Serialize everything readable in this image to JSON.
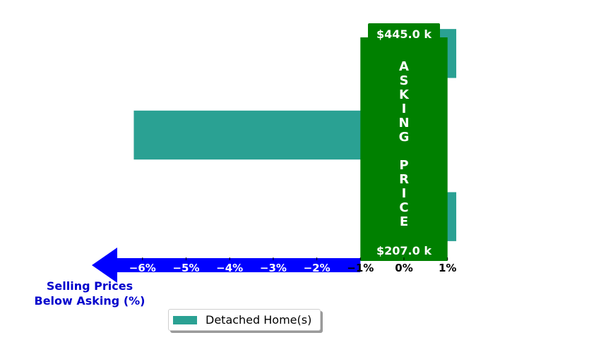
{
  "chart_data": {
    "type": "bar",
    "orientation": "horizontal",
    "series": [
      {
        "name": "Detached Home(s)",
        "values": [
          1.2,
          -6.2,
          1.2
        ],
        "color": "#2aa193"
      }
    ],
    "xlim": [
      -7.0,
      1.3
    ],
    "x_ticks": [
      {
        "value": -6,
        "label": "−6%"
      },
      {
        "value": -5,
        "label": "−5%"
      },
      {
        "value": -4,
        "label": "−4%"
      },
      {
        "value": -3,
        "label": "−3%"
      },
      {
        "value": -2,
        "label": "−2%"
      },
      {
        "value": -1,
        "label": "−1%"
      },
      {
        "value": 0,
        "label": "0%"
      },
      {
        "value": 1,
        "label": "1%"
      }
    ],
    "xlabel": "Selling Prices\nBelow Asking (%)",
    "asking_price_band": {
      "label": "ASKING PRICE",
      "top_value": "$445.0 k",
      "bottom_value": "$207.0 k",
      "color": "#008000",
      "x_range": [
        -1.0,
        1.0
      ]
    },
    "arrow_color": "#0000ff",
    "xlabel_color": "#0000cc",
    "legend": {
      "placement": "lower-center",
      "entries": [
        "Detached Home(s)"
      ]
    }
  }
}
